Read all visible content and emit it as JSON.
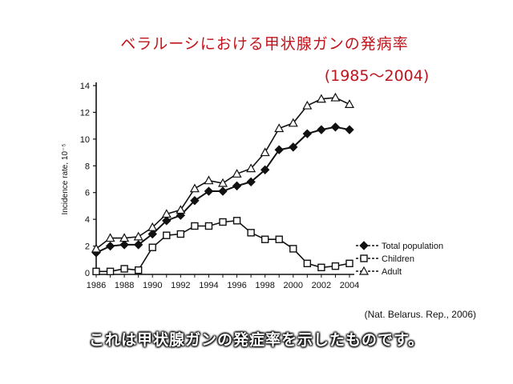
{
  "slide": {
    "title": "ベラルーシにおける甲状腺ガンの発病率",
    "subtitle": "(1985〜2004)",
    "source": "(Nat. Belarus. Rep., 2006)",
    "caption": "これは甲状腺ガンの発症率を示したものです。"
  },
  "colors": {
    "title": "#c0141c",
    "line": "#111111",
    "caption_fill": "#ffffff",
    "caption_outline": "#000000"
  },
  "chart_data": {
    "type": "line",
    "title": "",
    "xlabel": "",
    "ylabel": "Incidence rate, 10⁻⁵",
    "xlim": [
      1986,
      2004
    ],
    "ylim": [
      0,
      14
    ],
    "x_ticks": [
      1986,
      1988,
      1990,
      1992,
      1994,
      1996,
      1998,
      2000,
      2002,
      2004
    ],
    "y_ticks": [
      0,
      2,
      4,
      6,
      8,
      10,
      12,
      14
    ],
    "grid": false,
    "legend_position": "bottom-right",
    "x": [
      1986,
      1987,
      1988,
      1989,
      1990,
      1991,
      1992,
      1993,
      1994,
      1995,
      1996,
      1997,
      1998,
      1999,
      2000,
      2001,
      2002,
      2003,
      2004
    ],
    "series": [
      {
        "name": "Total population",
        "marker": "filled-diamond",
        "values": [
          1.5,
          2.0,
          2.1,
          2.1,
          2.9,
          3.9,
          4.3,
          5.4,
          6.1,
          6.1,
          6.5,
          6.8,
          7.7,
          9.2,
          9.4,
          10.4,
          10.7,
          10.9,
          10.7
        ]
      },
      {
        "name": "Children",
        "marker": "open-square",
        "values": [
          0.1,
          0.1,
          0.3,
          0.2,
          1.9,
          2.8,
          2.9,
          3.5,
          3.5,
          3.8,
          3.9,
          3.0,
          2.5,
          2.5,
          1.8,
          0.7,
          0.4,
          0.5,
          0.7
        ]
      },
      {
        "name": "Adult",
        "marker": "open-triangle",
        "values": [
          1.8,
          2.6,
          2.6,
          2.7,
          3.4,
          4.4,
          4.7,
          6.3,
          6.9,
          6.7,
          7.4,
          7.8,
          9.0,
          10.8,
          11.2,
          12.5,
          13.0,
          13.1,
          12.6
        ]
      }
    ]
  }
}
